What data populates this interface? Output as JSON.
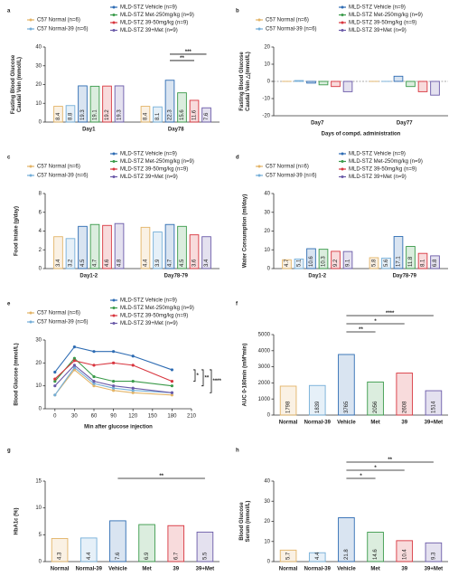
{
  "chart_data": [
    {
      "label": "a",
      "type": "bar",
      "ylabel": [
        "Fasting Blood Glucose",
        "Caudal Vein (mmol/L)"
      ],
      "categories": [
        "Day1",
        "Day78"
      ],
      "series": [
        {
          "name": "C57 Normal (n=6)",
          "color": "#e3b467",
          "values": [
            8.4,
            8.4
          ]
        },
        {
          "name": "C57 Normal-39 (n=6)",
          "color": "#74aed8",
          "values": [
            8.8,
            8.1
          ]
        },
        {
          "name": "MLD-STZ Vehicle (n=9)",
          "color": "#2e6cb3",
          "values": [
            19.3,
            22.3
          ]
        },
        {
          "name": "MLD-STZ Met-250mg/kg (n=9)",
          "color": "#3a9a4a",
          "values": [
            19.1,
            15.6
          ]
        },
        {
          "name": "MLD-STZ 39-50mg/kg (n=9)",
          "color": "#d8353e",
          "values": [
            19.2,
            11.6
          ]
        },
        {
          "name": "MLD-STZ 39+Met (n=9)",
          "color": "#6a5aa8",
          "values": [
            19.3,
            7.6
          ]
        }
      ],
      "ylim": [
        0,
        40
      ],
      "yticks": [
        0,
        10,
        20,
        30,
        40
      ],
      "show_values": true,
      "annotations": [
        "***",
        "**"
      ]
    },
    {
      "label": "b",
      "type": "bar",
      "ylabel": [
        "Fasting Blood Glucose",
        "Caudal Vein △(mmol/L)"
      ],
      "xlabel": "Days of compd. administration",
      "categories": [
        "Day7",
        "Day77"
      ],
      "series": [
        {
          "name": "C57 Normal (n=6)",
          "color": "#e3b467",
          "values": [
            0,
            0
          ]
        },
        {
          "name": "C57 Normal-39 (n=6)",
          "color": "#74aed8",
          "values": [
            0.5,
            0
          ]
        },
        {
          "name": "MLD-STZ Vehicle (n=9)",
          "color": "#2e6cb3",
          "values": [
            -1,
            3
          ]
        },
        {
          "name": "MLD-STZ Met-250mg/kg (n=9)",
          "color": "#3a9a4a",
          "values": [
            -2,
            -3
          ]
        },
        {
          "name": "MLD-STZ 39-50mg/kg (n=9)",
          "color": "#d8353e",
          "values": [
            -3,
            -6
          ]
        },
        {
          "name": "MLD-STZ 39+Met (n=9)",
          "color": "#6a5aa8",
          "values": [
            -6,
            -8
          ]
        }
      ],
      "ylim": [
        -20,
        20
      ],
      "yticks": [
        -20,
        -10,
        0,
        10,
        20
      ],
      "show_values": false,
      "annotations": []
    },
    {
      "label": "c",
      "type": "bar",
      "ylabel": [
        "Food Intake (g/day)"
      ],
      "categories": [
        "Day1-2",
        "Day78-79"
      ],
      "series": [
        {
          "name": "C57 Normal (n=6)",
          "color": "#e3b467",
          "values": [
            3.4,
            4.4
          ]
        },
        {
          "name": "C57 Normal-39 (n=6)",
          "color": "#74aed8",
          "values": [
            3.2,
            3.9
          ]
        },
        {
          "name": "MLD-STZ Vehicle (n=9)",
          "color": "#2e6cb3",
          "values": [
            4.5,
            4.7
          ]
        },
        {
          "name": "MLD-STZ Met-250mg/kg (n=9)",
          "color": "#3a9a4a",
          "values": [
            4.7,
            4.5
          ]
        },
        {
          "name": "MLD-STZ 39-50mg/kg (n=9)",
          "color": "#d8353e",
          "values": [
            4.6,
            3.6
          ]
        },
        {
          "name": "MLD-STZ 39+Met (n=9)",
          "color": "#6a5aa8",
          "values": [
            4.8,
            3.4
          ]
        }
      ],
      "ylim": [
        0,
        8
      ],
      "yticks": [
        0,
        2,
        4,
        6,
        8
      ],
      "show_values": true,
      "annotations": []
    },
    {
      "label": "d",
      "type": "bar",
      "ylabel": [
        "Water Consumption (ml/day)"
      ],
      "categories": [
        "Day1-2",
        "Day78-79"
      ],
      "series": [
        {
          "name": "C57 Normal (n=6)",
          "color": "#e3b467",
          "values": [
            4.7,
            5.8
          ]
        },
        {
          "name": "C57 Normal-39 (n=6)",
          "color": "#74aed8",
          "values": [
            5.1,
            5.6
          ]
        },
        {
          "name": "MLD-STZ Vehicle (n=9)",
          "color": "#2e6cb3",
          "values": [
            10.6,
            17.1
          ]
        },
        {
          "name": "MLD-STZ Met-250mg/kg (n=9)",
          "color": "#3a9a4a",
          "values": [
            10.3,
            11.8
          ]
        },
        {
          "name": "MLD-STZ 39-50mg/kg (n=9)",
          "color": "#d8353e",
          "values": [
            9.2,
            8.1
          ]
        },
        {
          "name": "MLD-STZ 39+Met (n=9)",
          "color": "#6a5aa8",
          "values": [
            9.1,
            6.8
          ]
        }
      ],
      "ylim": [
        0,
        40
      ],
      "yticks": [
        0,
        10,
        20,
        30,
        40
      ],
      "show_values": true,
      "annotations": []
    },
    {
      "label": "e",
      "type": "line",
      "ylabel": [
        "Blood Glucose (mmol/L)"
      ],
      "xlabel": "Min after glucose injection",
      "x": [
        0,
        30,
        60,
        90,
        120,
        180
      ],
      "series": [
        {
          "name": "C57 Normal (n=6)",
          "color": "#e3b467",
          "values": [
            6,
            17,
            10,
            8,
            7,
            6
          ]
        },
        {
          "name": "C57 Normal-39 (n=6)",
          "color": "#74aed8",
          "values": [
            6,
            18,
            11,
            9,
            8,
            7
          ]
        },
        {
          "name": "MLD-STZ Vehicle (n=9)",
          "color": "#2e6cb3",
          "values": [
            16,
            27,
            25,
            25,
            23,
            17
          ]
        },
        {
          "name": "MLD-STZ Met-250mg/kg (n=9)",
          "color": "#3a9a4a",
          "values": [
            12,
            22,
            14,
            12,
            12,
            10
          ]
        },
        {
          "name": "MLD-STZ 39-50mg/kg (n=9)",
          "color": "#d8353e",
          "values": [
            13,
            21,
            19,
            20,
            19,
            12
          ]
        },
        {
          "name": "MLD-STZ 39+Met (n=9)",
          "color": "#6a5aa8",
          "values": [
            10,
            19,
            12,
            10,
            9,
            7
          ]
        }
      ],
      "xlim": [
        -15,
        210
      ],
      "xticks": [
        0,
        30,
        60,
        90,
        120,
        150,
        180,
        210
      ],
      "ylim": [
        0,
        30
      ],
      "yticks": [
        0,
        10,
        20,
        30
      ],
      "annotations": [
        "*",
        "**",
        "****"
      ]
    },
    {
      "label": "f",
      "type": "bar",
      "ylabel": [
        "AUC 0-180min (mM*min)"
      ],
      "categories": [
        "Normal",
        "Normal-39",
        "Vehicle",
        "Met",
        "39",
        "39+Met"
      ],
      "values": [
        1798,
        1839,
        3765,
        2056,
        2608,
        1514
      ],
      "colors": [
        "#e3b467",
        "#74aed8",
        "#2e6cb3",
        "#3a9a4a",
        "#d8353e",
        "#6a5aa8"
      ],
      "ylim": [
        0,
        5000
      ],
      "yticks": [
        0,
        1000,
        2000,
        3000,
        4000,
        5000
      ],
      "show_values": true,
      "annotations": [
        "****",
        "*",
        "**"
      ]
    },
    {
      "label": "g",
      "type": "bar",
      "ylabel": [
        "HbA1c (%)"
      ],
      "categories": [
        "Normal",
        "Normal-39",
        "Vehicle",
        "Met",
        "39",
        "39+Met"
      ],
      "values": [
        4.3,
        4.4,
        7.6,
        6.9,
        6.7,
        5.5
      ],
      "colors": [
        "#e3b467",
        "#74aed8",
        "#2e6cb3",
        "#3a9a4a",
        "#d8353e",
        "#6a5aa8"
      ],
      "ylim": [
        0,
        15
      ],
      "yticks": [
        0,
        5,
        10,
        15
      ],
      "show_values": true,
      "annotations": [
        "**"
      ]
    },
    {
      "label": "h",
      "type": "bar",
      "ylabel": [
        "Blood Glucose",
        "Serum (mmol/L)"
      ],
      "categories": [
        "Normal",
        "Normal-39",
        "Vehicle",
        "Met",
        "39",
        "39+Met"
      ],
      "values": [
        5.7,
        4.4,
        21.8,
        14.6,
        10.4,
        9.3
      ],
      "colors": [
        "#e3b467",
        "#74aed8",
        "#2e6cb3",
        "#3a9a4a",
        "#d8353e",
        "#6a5aa8"
      ],
      "ylim": [
        0,
        40
      ],
      "yticks": [
        0,
        10,
        20,
        30,
        40
      ],
      "show_values": true,
      "annotations": [
        "**",
        "*",
        "*"
      ]
    }
  ]
}
